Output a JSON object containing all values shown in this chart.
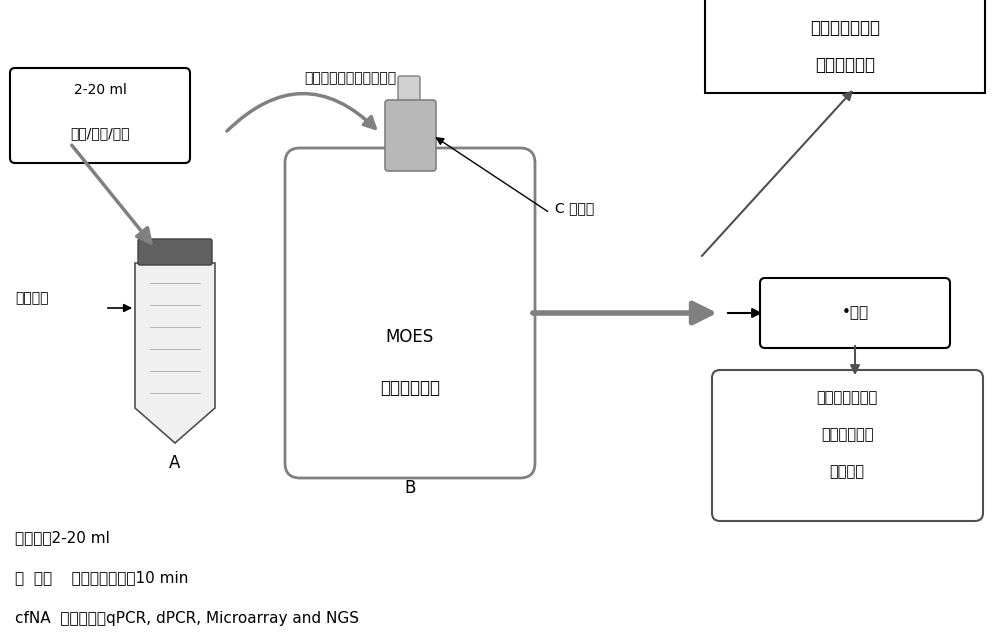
{
  "bg_color": "#ffffff",
  "title": "",
  "label_top_box": "2-20 ml\n血浆/血滴/体液",
  "label_arrow_top": "转移裂解液，吸附，淋洗",
  "label_lysis": "裂解消化",
  "label_A": "A",
  "label_B": "B",
  "label_MOES": "MOES",
  "label_device": "密闭提取装置",
  "label_C": "C 提取芯",
  "label_store": "•储存",
  "label_immediate": "即时洗脱核酸，\n进入下游应用",
  "label_transport": "常温运输至中心\n实验室，进入\n下游应用",
  "label_footer1": "样本量：2-20 ml",
  "label_footer2": "快  速：    手工操作时间＜10 min",
  "label_footer3": "cfNA  下游应用：qPCR, dPCR, Microarray and NGS"
}
